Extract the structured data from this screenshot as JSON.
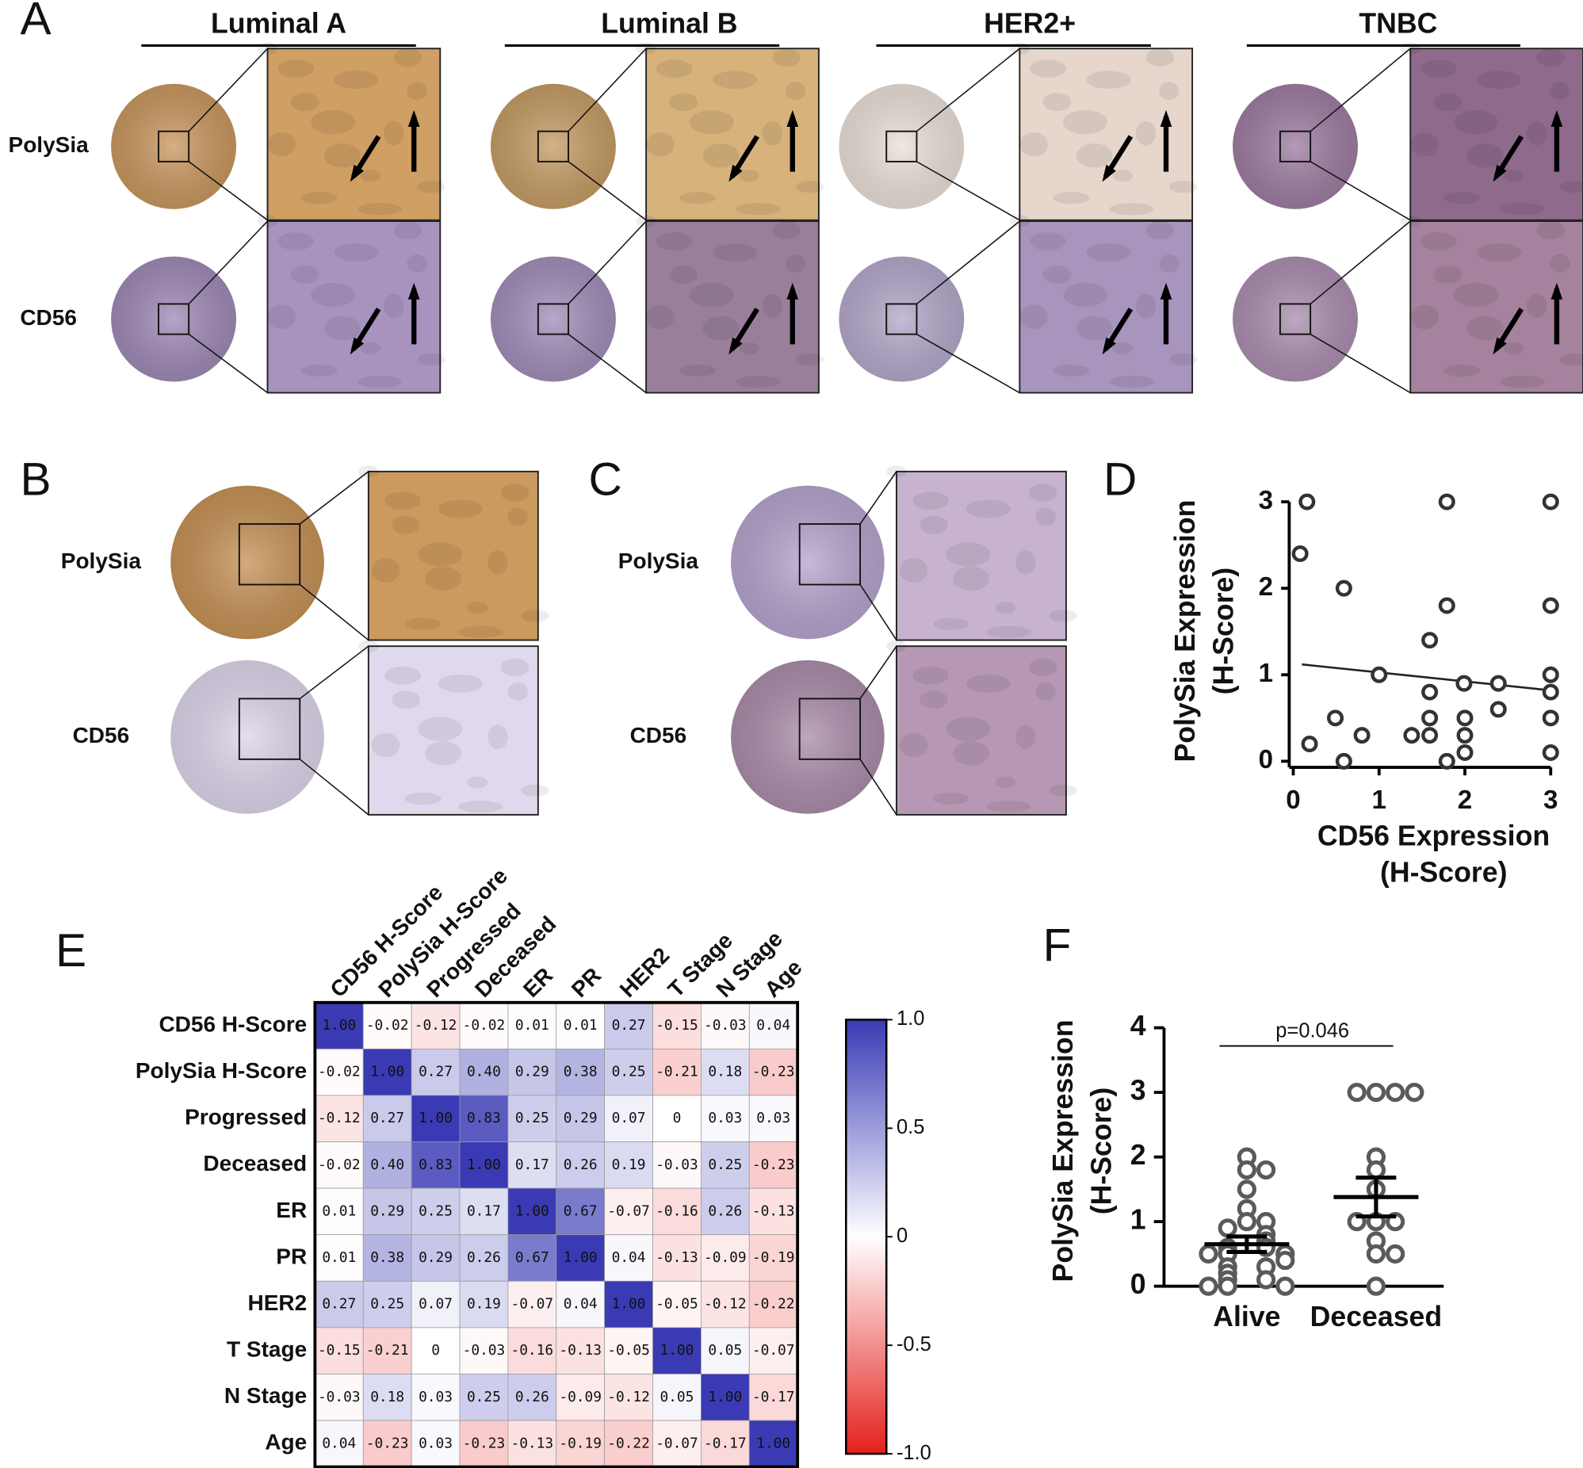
{
  "panels": {
    "labels": [
      "A",
      "B",
      "C",
      "D",
      "E",
      "F"
    ],
    "a": {
      "columns": [
        "Luminal A",
        "Luminal B",
        "HER2+",
        "TNBC"
      ],
      "rows": [
        "PolySia",
        "CD56"
      ]
    },
    "b": {
      "rows": [
        "PolySia",
        "CD56"
      ]
    },
    "c": {
      "rows": [
        "PolySia",
        "CD56"
      ]
    }
  },
  "chart_data": [
    {
      "type": "scatter",
      "xlabel": [
        "CD56 Expression",
        "(H-Score)"
      ],
      "ylabel": [
        "PolySia Expression",
        "(H-Score)"
      ],
      "x": [
        0.16,
        0.08,
        0.19,
        0.59,
        0.49,
        0.59,
        0.8,
        1.0,
        1.38,
        1.59,
        1.59,
        1.59,
        1.59,
        1.79,
        1.79,
        1.79,
        1.99,
        2.0,
        2.0,
        2.0,
        2.39,
        2.39,
        3.0,
        3.0,
        3.0,
        3.0,
        3.0,
        3.0
      ],
      "y": [
        3.0,
        2.4,
        0.2,
        2.0,
        0.5,
        0.0,
        0.3,
        1.0,
        0.3,
        1.4,
        0.8,
        0.5,
        0.3,
        3.0,
        1.8,
        0.0,
        0.9,
        0.5,
        0.3,
        0.1,
        0.9,
        0.6,
        3.0,
        1.8,
        1.0,
        0.8,
        0.5,
        0.1
      ],
      "trendline": {
        "x": [
          0.1,
          3.0
        ],
        "y": [
          1.12,
          0.82
        ]
      },
      "color": "#333333",
      "xlim": [
        0,
        3
      ],
      "xticks": [
        0,
        1,
        2,
        3
      ],
      "ylim": [
        0,
        3
      ],
      "yticks": [
        0,
        1,
        2,
        3
      ]
    },
    {
      "type": "heatmap",
      "x_categories": [
        "CD56 H-Score",
        "PolySia H-Score",
        "Progressed",
        "Deceased",
        "ER",
        "PR",
        "HER2",
        "T Stage",
        "N Stage",
        "Age"
      ],
      "y_categories": [
        "CD56 H-Score",
        "PolySia H-Score",
        "Progressed",
        "Deceased",
        "ER",
        "PR",
        "HER2",
        "T Stage",
        "N Stage",
        "Age"
      ],
      "values": [
        [
          1.0,
          -0.02,
          -0.12,
          -0.02,
          0.01,
          0.01,
          0.27,
          -0.15,
          -0.03,
          0.04
        ],
        [
          -0.02,
          1.0,
          0.27,
          0.4,
          0.29,
          0.38,
          0.25,
          -0.21,
          0.18,
          -0.23
        ],
        [
          -0.12,
          0.27,
          1.0,
          0.83,
          0.25,
          0.29,
          0.07,
          0,
          0.03,
          0.03
        ],
        [
          -0.02,
          0.4,
          0.83,
          1.0,
          0.17,
          0.26,
          0.19,
          -0.03,
          0.25,
          -0.23
        ],
        [
          0.01,
          0.29,
          0.25,
          0.17,
          1.0,
          0.67,
          -0.07,
          -0.16,
          0.26,
          -0.13
        ],
        [
          0.01,
          0.38,
          0.29,
          0.26,
          0.67,
          1.0,
          0.04,
          -0.13,
          -0.09,
          -0.19
        ],
        [
          0.27,
          0.25,
          0.07,
          0.19,
          -0.07,
          0.04,
          1.0,
          -0.05,
          -0.12,
          -0.22
        ],
        [
          -0.15,
          -0.21,
          0,
          -0.03,
          -0.16,
          -0.13,
          -0.05,
          1.0,
          0.05,
          -0.07
        ],
        [
          -0.03,
          0.18,
          0.03,
          0.25,
          0.26,
          -0.09,
          -0.12,
          0.05,
          1.0,
          -0.17
        ],
        [
          0.04,
          -0.23,
          0.03,
          -0.23,
          -0.13,
          -0.19,
          -0.22,
          -0.07,
          -0.17,
          1.0
        ]
      ],
      "value_labels": [
        [
          "1.00",
          "-0.02",
          "-0.12",
          "-0.02",
          "0.01",
          "0.01",
          "0.27",
          "-0.15",
          "-0.03",
          "0.04"
        ],
        [
          "-0.02",
          "1.00",
          "0.27",
          "0.40",
          "0.29",
          "0.38",
          "0.25",
          "-0.21",
          "0.18",
          "-0.23"
        ],
        [
          "-0.12",
          "0.27",
          "1.00",
          "0.83",
          "0.25",
          "0.29",
          "0.07",
          "0",
          "0.03",
          "0.03"
        ],
        [
          "-0.02",
          "0.40",
          "0.83",
          "1.00",
          "0.17",
          "0.26",
          "0.19",
          "-0.03",
          "0.25",
          "-0.23"
        ],
        [
          "0.01",
          "0.29",
          "0.25",
          "0.17",
          "1.00",
          "0.67",
          "-0.07",
          "-0.16",
          "0.26",
          "-0.13"
        ],
        [
          "0.01",
          "0.38",
          "0.29",
          "0.26",
          "0.67",
          "1.00",
          "0.04",
          "-0.13",
          "-0.09",
          "-0.19"
        ],
        [
          "0.27",
          "0.25",
          "0.07",
          "0.19",
          "-0.07",
          "0.04",
          "1.00",
          "-0.05",
          "-0.12",
          "-0.22"
        ],
        [
          "-0.15",
          "-0.21",
          "0",
          "-0.03",
          "-0.16",
          "-0.13",
          "-0.05",
          "1.00",
          "0.05",
          "-0.07"
        ],
        [
          "-0.03",
          "0.18",
          "0.03",
          "0.25",
          "0.26",
          "-0.09",
          "-0.12",
          "0.05",
          "1.00",
          "-0.17"
        ],
        [
          "0.04",
          "-0.23",
          "0.03",
          "-0.23",
          "-0.13",
          "-0.19",
          "-0.22",
          "-0.07",
          "-0.17",
          "1.00"
        ]
      ],
      "clim": [
        -1,
        1
      ],
      "colors": {
        "low": "#e4201c",
        "mid": "#ffffff",
        "high": "#3a3ab4"
      },
      "colorbar_ticks": [
        {
          "value": 1,
          "label": "1.0"
        },
        0.5,
        0,
        -0.5,
        {
          "value": -1,
          "label": "-1.0"
        }
      ]
    },
    {
      "type": "dot",
      "categories": [
        "Alive",
        "Deceased"
      ],
      "values": [
        [
          2.0,
          1.8,
          1.8,
          1.5,
          1.2,
          1.0,
          1.0,
          0.9,
          0.8,
          0.7,
          0.6,
          0.6,
          0.5,
          0.5,
          0.5,
          0.4,
          0.3,
          0.3,
          0.2,
          0.1,
          0.1,
          0,
          0,
          0
        ],
        [
          3.0,
          3.0,
          3.0,
          3.0,
          2.0,
          1.8,
          1.5,
          1.0,
          1.0,
          1.0,
          0.7,
          0.5,
          0.5,
          0
        ]
      ],
      "mean": [
        0.65,
        1.38
      ],
      "sem": [
        0.12,
        0.3
      ],
      "ylabel": [
        "PolySia Expression",
        "(H-Score)"
      ],
      "annotations": [
        "p=0.046"
      ],
      "color": "#5a5a5a",
      "ylim": [
        0,
        4
      ],
      "yticks": [
        0,
        1,
        2,
        3,
        4
      ]
    }
  ]
}
